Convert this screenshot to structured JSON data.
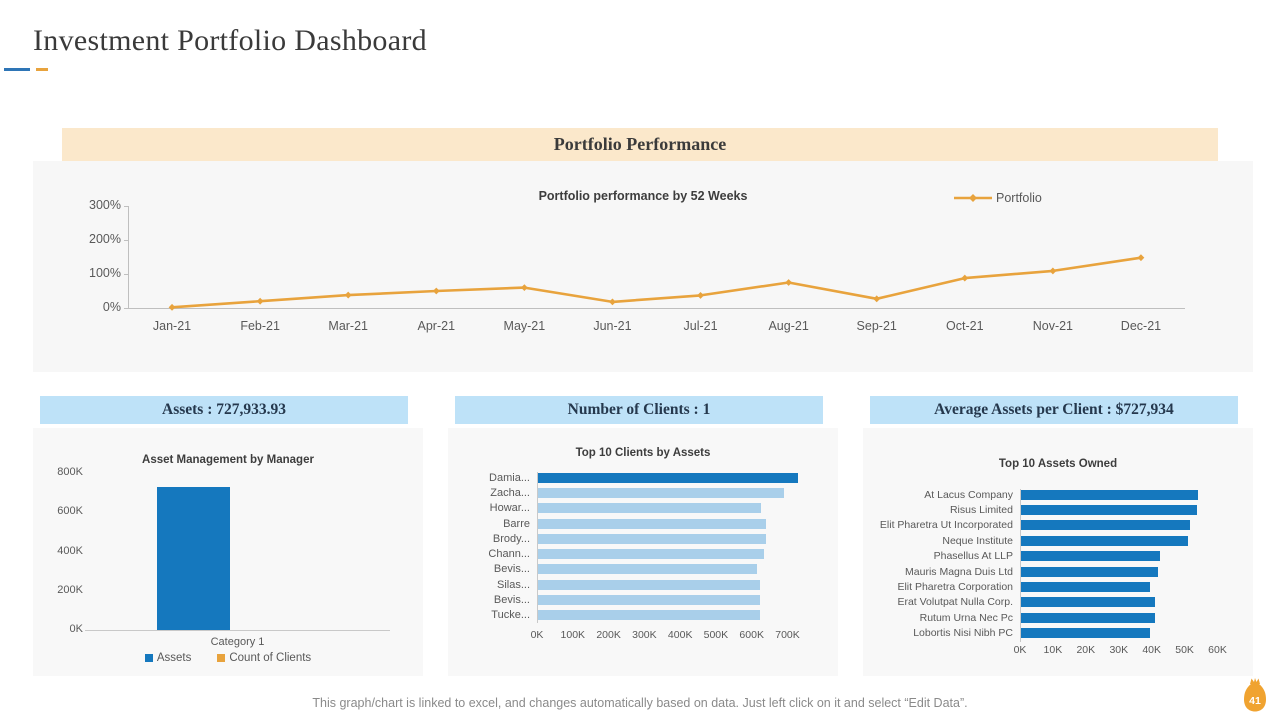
{
  "page": {
    "title": "Investment Portfolio Dashboard",
    "footer": "This graph/chart is linked to excel,  and changes automatically based on data. Just left click on it and select “Edit Data”.",
    "slide_number": "41"
  },
  "banner": {
    "title": "Portfolio Performance"
  },
  "colors": {
    "accent_blue": "#2E75B6",
    "accent_gold": "#E8A33D",
    "banner_bg": "#FBE8CB",
    "panel_header_bg": "#BEE2F8",
    "bar_blue": "#1578BE",
    "bar_light_blue": "#A9CFEA",
    "line_orange": "#E8A33D",
    "badge_orange": "#F0A330"
  },
  "chart_data": [
    {
      "type": "line",
      "title": "Portfolio performance by 52 Weeks",
      "legend": "Portfolio",
      "legend_position": "top-right",
      "grid": false,
      "categories": [
        "Jan-21",
        "Feb-21",
        "Mar-21",
        "Apr-21",
        "May-21",
        "Jun-21",
        "Jul-21",
        "Aug-21",
        "Sep-21",
        "Oct-21",
        "Nov-21",
        "Dec-21"
      ],
      "values": [
        2,
        20,
        38,
        50,
        60,
        18,
        37,
        75,
        27,
        88,
        109,
        148
      ],
      "ylim": [
        0,
        300
      ],
      "y_ticks": [
        "300%",
        "200%",
        "100%",
        "0%"
      ]
    },
    {
      "type": "bar",
      "header": "Assets : 727,933.93",
      "title": "Asset Management by Manager",
      "categories": [
        "Category 1"
      ],
      "values": [
        727.93
      ],
      "unit": "K",
      "ylim": [
        0,
        800
      ],
      "y_ticks": [
        "800K",
        "600K",
        "400K",
        "200K",
        "0K"
      ],
      "legend": [
        {
          "label": "Assets",
          "color": "#1578BE"
        },
        {
          "label": "Count of  Clients",
          "color": "#E8A33D"
        }
      ]
    },
    {
      "type": "hbar",
      "header": "Number of Clients : 1",
      "title": "Top 10 Clients by Assets",
      "categories": [
        "Damia...",
        "Zacha...",
        "Howar...",
        "Barre",
        "Brody...",
        "Chann...",
        "Bevis...",
        "Silas...",
        "Bevis...",
        "Tucke..."
      ],
      "values": [
        728,
        690,
        625,
        640,
        640,
        633,
        615,
        624,
        624,
        624
      ],
      "unit": "K",
      "xlim": [
        0,
        760
      ],
      "x_ticks": [
        "0K",
        "100K",
        "200K",
        "300K",
        "400K",
        "500K",
        "600K",
        "700K"
      ],
      "highlight_first": true
    },
    {
      "type": "hbar",
      "header": "Average Assets per Client : $727,934",
      "title": "Top 10 Assets  Owned",
      "categories": [
        "At Lacus Company",
        "Risus Limited",
        "Elit Pharetra Ut Incorporated",
        "Neque Institute",
        "Phasellus At LLP",
        "Mauris Magna Duis Ltd",
        "Elit Pharetra Corporation",
        "Erat Volutpat Nulla Corp.",
        "Rutum Urna Nec Pc",
        "Lobortis Nisi Nibh PC"
      ],
      "values": [
        54,
        53.8,
        51.5,
        51,
        42.5,
        42,
        39.5,
        41,
        41,
        39.5
      ],
      "unit": "K",
      "xlim": [
        0,
        65
      ],
      "x_ticks": [
        "0K",
        "10K",
        "20K",
        "30K",
        "40K",
        "50K",
        "60K"
      ],
      "highlight_first": false
    }
  ]
}
